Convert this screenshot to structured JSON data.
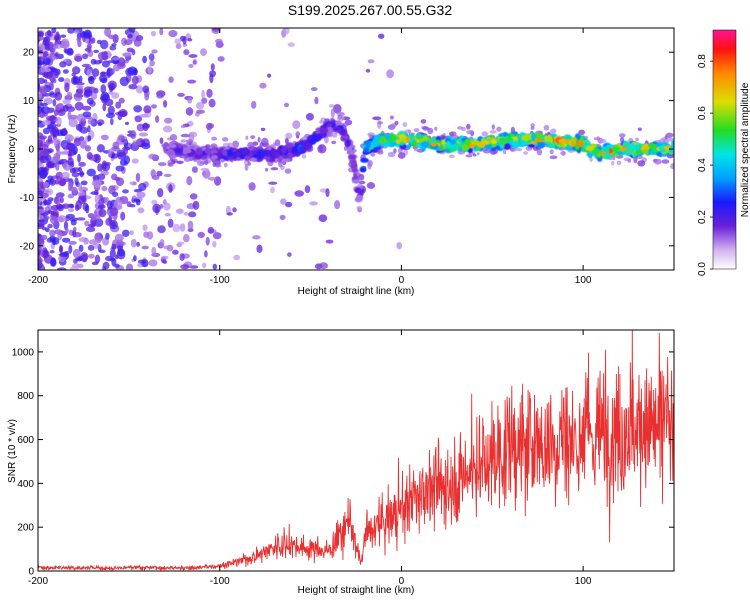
{
  "title": "S199.2025.267.00.55.G32",
  "chart_data": [
    {
      "type": "heatmap",
      "panel": "spectrogram",
      "xlabel": "Height of straight line (km)",
      "ylabel": "Frequency (Hz)",
      "xlim": [
        -200,
        150
      ],
      "ylim": [
        -25,
        25
      ],
      "xticks": [
        -200,
        -100,
        0,
        100
      ],
      "yticks": [
        -20,
        -10,
        0,
        10,
        20
      ],
      "colorbar": {
        "label": "Normalized spectral amplitude",
        "range": [
          0.0,
          0.92
        ],
        "ticks": [
          0.0,
          0.2,
          0.4,
          0.6,
          0.8
        ]
      },
      "trace": {
        "description": "signal ridge frequency vs height",
        "x": [
          -130,
          -110,
          -90,
          -70,
          -55,
          -45,
          -38,
          -32,
          -28,
          -25,
          -23,
          -20,
          -10,
          0,
          20,
          40,
          60,
          80,
          100,
          110,
          120,
          135,
          150
        ],
        "y": [
          0,
          -1,
          -1,
          -1,
          0,
          3,
          5,
          4,
          0,
          -6,
          -11,
          0,
          2,
          2,
          1,
          1,
          2,
          2,
          1,
          -1,
          0,
          0,
          0
        ],
        "peak_amplitude": [
          0.2,
          0.25,
          0.3,
          0.3,
          0.35,
          0.3,
          0.3,
          0.25,
          0.2,
          0.2,
          0.2,
          0.5,
          0.8,
          0.85,
          0.8,
          0.85,
          0.8,
          0.85,
          0.88,
          0.9,
          0.9,
          0.85,
          0.8
        ]
      }
    },
    {
      "type": "line",
      "panel": "snr",
      "xlabel": "Height of straight line (km)",
      "ylabel": "SNR (10 * v/v)",
      "xlim": [
        -200,
        150
      ],
      "ylim": [
        0,
        1100
      ],
      "xticks": [
        -200,
        -100,
        0,
        100
      ],
      "yticks": [
        0,
        200,
        400,
        600,
        800,
        1000
      ],
      "series": [
        {
          "name": "SNR",
          "color": "#e83030",
          "x": [
            -200,
            -150,
            -110,
            -100,
            -90,
            -80,
            -70,
            -60,
            -50,
            -40,
            -32,
            -28,
            -25,
            -22,
            -20,
            -10,
            0,
            10,
            20,
            30,
            40,
            50,
            60,
            70,
            80,
            90,
            100,
            110,
            120,
            130,
            140,
            150
          ],
          "y": [
            15,
            15,
            18,
            22,
            40,
            70,
            110,
            120,
            100,
            90,
            180,
            250,
            100,
            40,
            160,
            220,
            280,
            340,
            380,
            420,
            460,
            520,
            560,
            570,
            580,
            600,
            600,
            620,
            640,
            650,
            650,
            620
          ]
        }
      ]
    }
  ]
}
